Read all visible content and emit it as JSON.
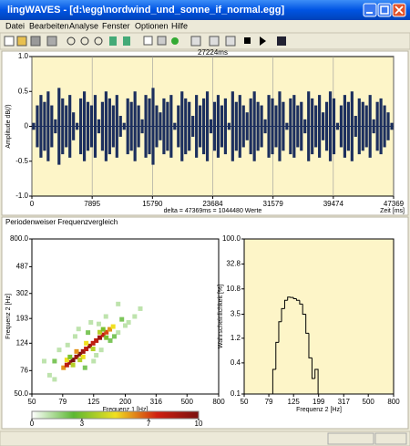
{
  "window": {
    "title": "lingWAVES - [d:\\egg\\nordwind_und_sonne_if_normal.egg]",
    "menu": [
      "Datei",
      "Bearbeiten",
      "Analyse",
      "Fenster",
      "Optionen",
      "Hilfe"
    ]
  },
  "panel_title": "Periodenweiser Frequenzvergleich",
  "chart_data": [
    {
      "type": "waveform",
      "title": "27224ms",
      "ylabel": "Amplitude dB(/)",
      "xlabel": "Zeit [ms]",
      "note": "delta = 47369ms = 1044480 Werte",
      "color": "#1c2f5e",
      "background": "#fdf5c8",
      "grid": true,
      "xlim": [
        0,
        47369
      ],
      "xticks": [
        0,
        7895,
        15790,
        23684,
        31579,
        39474,
        47369
      ],
      "ylim": [
        -1,
        1
      ],
      "yticks": [
        {
          "value": 1,
          "label": "1.0"
        },
        0.5,
        0,
        -0.5,
        {
          "value": -1,
          "label": "-1.0"
        }
      ],
      "values": [
        0.05,
        0.3,
        0.45,
        0.35,
        0.5,
        0.3,
        0.1,
        0.55,
        0.4,
        0.3,
        0.45,
        0.2,
        0.05,
        0.4,
        0.5,
        0.35,
        0.3,
        0.45,
        0.1,
        0.35,
        0.5,
        0.4,
        0.3,
        0.45,
        0.15,
        0.05,
        0.4,
        0.35,
        0.5,
        0.3,
        0.1,
        0.45,
        0.4,
        0.55,
        0.3,
        0.2,
        0.4,
        0.35,
        0.45,
        0.05,
        0.3,
        0.5,
        0.4,
        0.35,
        0.15,
        0.45,
        0.3,
        0.4,
        0.5,
        0.1,
        0.35,
        0.45,
        0.3,
        0.4,
        0.05,
        0.5,
        0.35,
        0.45,
        0.3,
        0.2,
        0.4,
        0.5,
        0.35,
        0.3,
        0.1,
        0.45,
        0.4,
        0.3,
        0.5,
        0.35,
        0.05,
        0.4,
        0.45,
        0.3,
        0.35,
        0.1,
        0.5,
        0.4,
        0.3,
        0.45,
        0.2,
        0.35,
        0.5,
        0.4,
        0.05,
        0.3,
        0.45,
        0.35,
        0.5,
        0.15,
        0.4,
        0.35,
        0.3,
        0.45,
        0.1,
        0.35,
        0.4,
        0.3,
        0.2,
        0.05
      ]
    },
    {
      "type": "heatmap",
      "xlabel": "Frequenz 1 [Hz]",
      "ylabel": "Frequenz 2 [Hz]",
      "xlog": true,
      "ylog": true,
      "xlim": [
        50,
        800
      ],
      "xticks": [
        50,
        79,
        125,
        200,
        316,
        500,
        800
      ],
      "ylim": [
        50,
        800
      ],
      "yticks": [
        {
          "value": 50,
          "label": "50.0"
        },
        76,
        124,
        193,
        302,
        487,
        {
          "value": 800,
          "label": "800.0"
        }
      ],
      "colormap": [
        "#ffffff",
        "#5cb832",
        "#f0e020",
        "#d02010",
        "#7a1010"
      ],
      "clim": [
        0,
        10
      ],
      "cticks": [
        0,
        3,
        7,
        10
      ],
      "cells": [
        [
          80,
          80,
          6
        ],
        [
          84,
          84,
          8
        ],
        [
          88,
          88,
          9
        ],
        [
          92,
          92,
          10
        ],
        [
          97,
          97,
          9
        ],
        [
          102,
          102,
          10
        ],
        [
          107,
          107,
          9
        ],
        [
          112,
          112,
          8
        ],
        [
          118,
          118,
          9
        ],
        [
          124,
          124,
          8
        ],
        [
          130,
          130,
          8
        ],
        [
          137,
          137,
          9
        ],
        [
          144,
          144,
          8
        ],
        [
          151,
          151,
          7
        ],
        [
          159,
          159,
          6
        ],
        [
          167,
          167,
          5
        ],
        [
          84,
          92,
          5
        ],
        [
          92,
          84,
          4
        ],
        [
          97,
          107,
          6
        ],
        [
          107,
          97,
          5
        ],
        [
          112,
          124,
          5
        ],
        [
          124,
          112,
          4
        ],
        [
          137,
          151,
          4
        ],
        [
          151,
          137,
          3
        ],
        [
          144,
          159,
          3
        ],
        [
          88,
          97,
          3
        ],
        [
          102,
          92,
          4
        ],
        [
          70,
          90,
          2
        ],
        [
          75,
          110,
          1
        ],
        [
          110,
          80,
          2
        ],
        [
          130,
          100,
          1
        ],
        [
          160,
          130,
          2
        ],
        [
          180,
          150,
          1
        ],
        [
          200,
          170,
          1
        ],
        [
          95,
          140,
          1
        ],
        [
          120,
          180,
          1
        ],
        [
          150,
          200,
          1
        ],
        [
          190,
          190,
          2
        ],
        [
          210,
          180,
          1
        ],
        [
          230,
          200,
          1
        ],
        [
          65,
          70,
          1
        ],
        [
          70,
          65,
          1
        ],
        [
          100,
          160,
          1
        ],
        [
          140,
          110,
          1
        ],
        [
          170,
          140,
          2
        ],
        [
          85,
          120,
          1
        ],
        [
          115,
          150,
          2
        ],
        [
          250,
          230,
          1
        ],
        [
          60,
          90,
          1
        ],
        [
          180,
          250,
          1
        ],
        [
          135,
          175,
          1
        ],
        [
          125,
          90,
          1
        ]
      ]
    },
    {
      "type": "histogram",
      "xlabel": "Frequenz 2 [Hz]",
      "ylabel": "Wahrscheinlichkeit [%]",
      "xlog": true,
      "ylog": true,
      "color": "#000000",
      "background": "#fdf5c8",
      "xlim": [
        50,
        800
      ],
      "xticks": [
        50,
        79,
        125,
        199,
        317,
        500,
        800
      ],
      "ylim": [
        0.1,
        100
      ],
      "yticks": [
        0.1,
        0.4,
        1.2,
        3.5,
        10.8,
        32.8,
        {
          "value": 100,
          "label": "100.0"
        }
      ],
      "bins": [
        85,
        90,
        95,
        100,
        106,
        112,
        118,
        125,
        132,
        140,
        148,
        157,
        166,
        176,
        186,
        197
      ],
      "values": [
        0.3,
        1.0,
        2.5,
        4.5,
        6.5,
        7.5,
        7.4,
        7.0,
        6.5,
        5.5,
        3.5,
        1.5,
        0.5,
        0.2,
        0.3
      ]
    }
  ]
}
